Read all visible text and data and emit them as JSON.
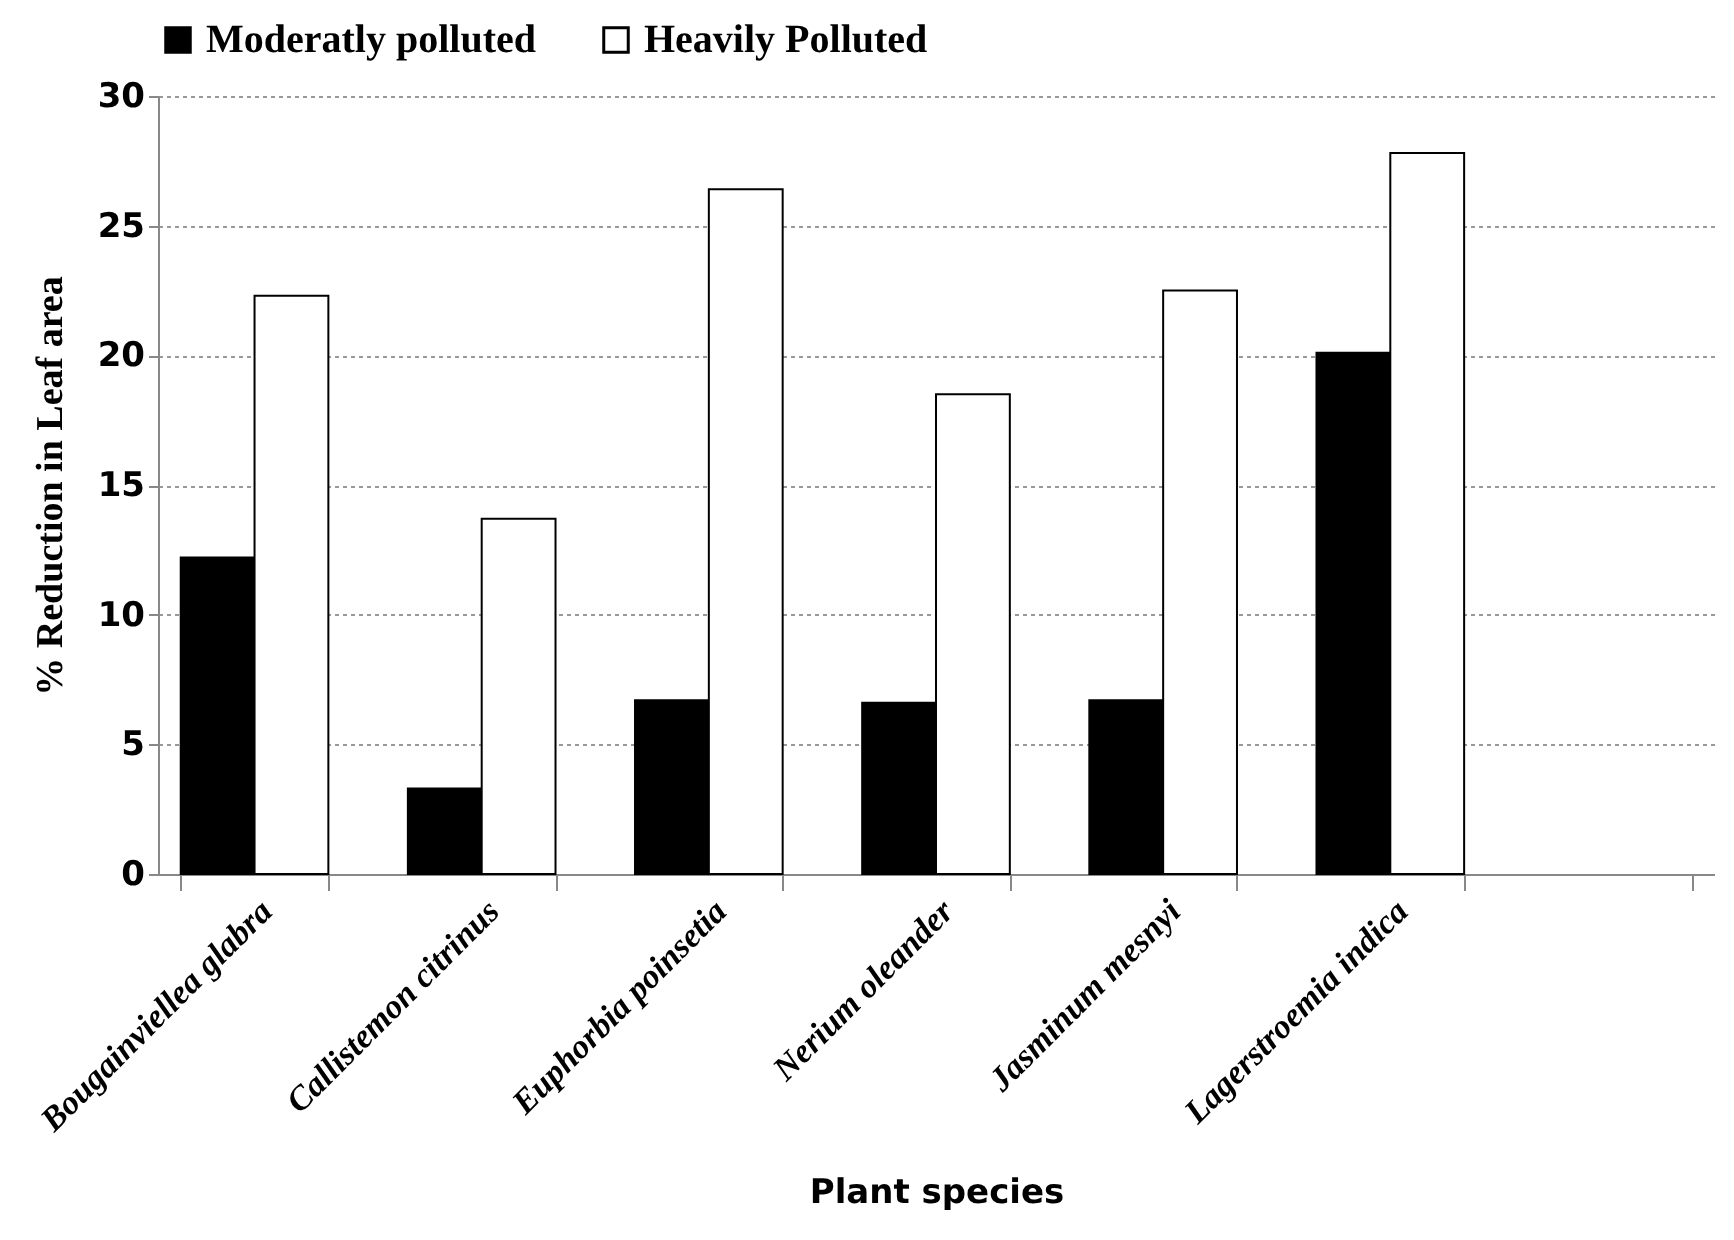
{
  "chart_data": {
    "type": "bar",
    "xlabel": "Plant species",
    "ylabel": "% Reduction in Leaf area",
    "categories": [
      "Bougainviellea glabra",
      "Callistemon citrinus",
      "Euphorbia poinsetia",
      "Nerium oleander",
      "Jasminum  mesnyi",
      "Lagerstroemia indica",
      null
    ],
    "series": [
      {
        "name": "Moderatly polluted",
        "color": "#000000",
        "values": [
          12.2,
          3.3,
          6.7,
          6.6,
          6.7,
          20.1,
          null
        ]
      },
      {
        "name": "Heavily Polluted",
        "color": "#ffffff",
        "values": [
          22.3,
          13.7,
          26.4,
          18.5,
          22.5,
          27.8,
          null
        ]
      }
    ],
    "ylim": [
      0,
      30
    ],
    "yticks": [
      0,
      5,
      10,
      15,
      20,
      25,
      30
    ],
    "grid": "y",
    "legend": "top"
  }
}
